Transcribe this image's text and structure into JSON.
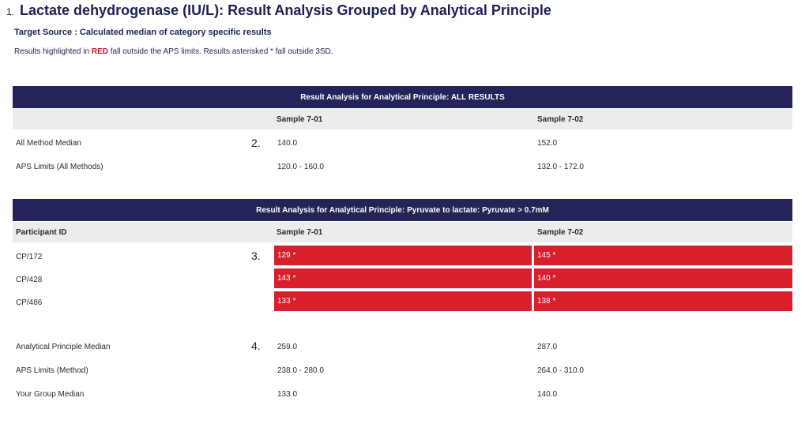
{
  "title": {
    "number": "1.",
    "text": "Lactate dehydrogenase  (IU/L): Result Analysis Grouped by Analytical Principle"
  },
  "target_source": "Target Source : Calculated median of category specific results",
  "note": {
    "before": "Results highlighted in ",
    "red": "RED",
    "after": " fall outside the APS limits. Results asterisked * fall outside 3SD."
  },
  "colors": {
    "header_bg": "#232559",
    "highlight_red": "#d71f2e",
    "subheader_bg": "#ececec"
  },
  "table1": {
    "header": "Result Analysis for Analytical Principle: ALL RESULTS",
    "col1": "Sample 7-01",
    "col2": "Sample 7-02",
    "marker": "2.",
    "rows": [
      {
        "label": "All Method Median",
        "v1": "140.0",
        "v2": "152.0"
      },
      {
        "label": "APS Limits (All Methods)",
        "v1": "120.0 - 160.0",
        "v2": "132.0 - 172.0"
      }
    ]
  },
  "table2": {
    "header": "Result Analysis for Analytical Principle: Pyruvate to lactate: Pyruvate > 0.7mM",
    "col0": "Participant ID",
    "col1": "Sample 7-01",
    "col2": "Sample 7-02",
    "marker": "3.",
    "rows": [
      {
        "label": "CP/172",
        "v1": "129 *",
        "v2": "145 *"
      },
      {
        "label": "CP/428",
        "v1": "143 *",
        "v2": "140 *"
      },
      {
        "label": "CP/486",
        "v1": "133 *",
        "v2": "138 *"
      }
    ]
  },
  "summary": {
    "marker": "4.",
    "rows": [
      {
        "label": "Analytical Principle Median",
        "v1": "259.0",
        "v2": "287.0"
      },
      {
        "label": "APS Limits (Method)",
        "v1": "238.0 - 280.0",
        "v2": "264.0 - 310.0"
      },
      {
        "label": "Your Group Median",
        "v1": "133.0",
        "v2": "140.0"
      }
    ]
  }
}
